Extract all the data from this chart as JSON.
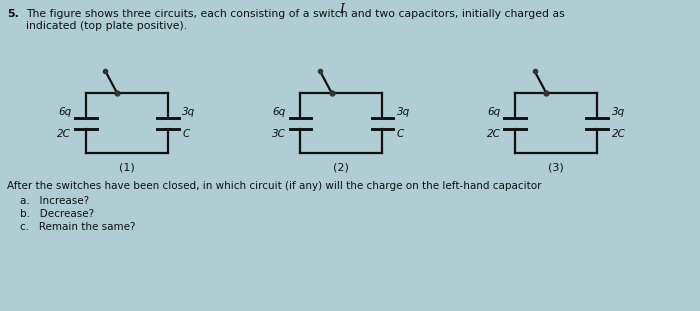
{
  "bg_color": "#b0cdd4",
  "title_marker": "I",
  "question_number": "5.",
  "question_text": "The figure shows three circuits, each consisting of a switch and two capacitors, initially charged as\nindicated (top plate positive).",
  "circuit1": {
    "left_cap_charge": "6q",
    "left_cap_value": "2C",
    "right_cap_charge": "3q",
    "right_cap_value": "C",
    "label": "(1)"
  },
  "circuit2": {
    "left_cap_charge": "6q",
    "left_cap_value": "3C",
    "right_cap_charge": "3q",
    "right_cap_value": "C",
    "label": "(2)"
  },
  "circuit3": {
    "left_cap_charge": "6q",
    "left_cap_value": "2C",
    "right_cap_charge": "3q",
    "right_cap_value": "2C",
    "label": "(3)"
  },
  "question_after": "After the switches have been closed, in which circuit (if any) will the charge on the left-hand capacitor",
  "options": [
    "a.   Increase?",
    "b.   Decrease?",
    "c.   Remain the same?"
  ],
  "line_color": "#111111",
  "text_color": "#111111",
  "dot_color": "#333333"
}
